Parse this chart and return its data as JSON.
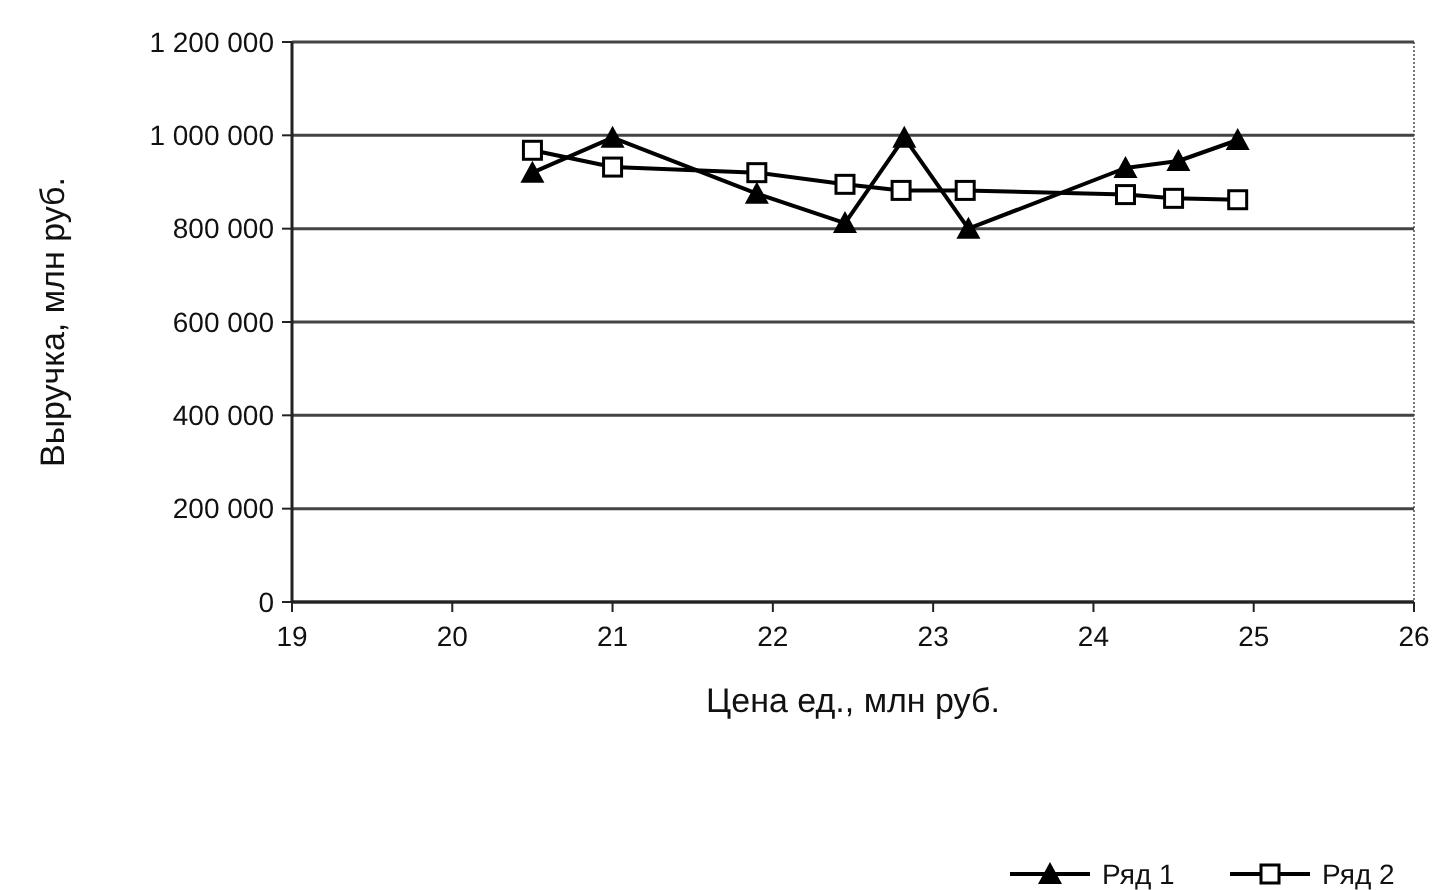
{
  "chart_data": {
    "type": "line",
    "xlabel": "Цена ед., млн руб.",
    "ylabel": "Выручка, млн руб.",
    "xlim": [
      19,
      26
    ],
    "xticks": [
      19,
      20,
      21,
      22,
      23,
      24,
      25,
      26
    ],
    "ylim": [
      0,
      1200000
    ],
    "yticks": [
      {
        "value": 0,
        "label": "0"
      },
      {
        "value": 200000,
        "label": "200 000"
      },
      {
        "value": 400000,
        "label": "400 000"
      },
      {
        "value": 600000,
        "label": "600 000"
      },
      {
        "value": 800000,
        "label": "800 000"
      },
      {
        "value": 1000000,
        "label": "1 000 000"
      },
      {
        "value": 1200000,
        "label": "1 200 000"
      }
    ],
    "grid": "y",
    "legend": "bottom",
    "series": [
      {
        "name": "Ряд 1",
        "color": "#000000",
        "marker": "triangle",
        "x": [
          20.5,
          21.0,
          21.9,
          22.45,
          22.82,
          23.22,
          24.2,
          24.53,
          24.9
        ],
        "values": [
          920000,
          995000,
          875000,
          812000,
          995000,
          800000,
          930000,
          945000,
          990000
        ]
      },
      {
        "name": "Ряд 2",
        "color": "#000000",
        "marker": "square",
        "x": [
          20.5,
          21.0,
          21.9,
          22.45,
          22.8,
          23.2,
          24.2,
          24.5,
          24.9
        ],
        "values": [
          968000,
          932000,
          920000,
          895000,
          882000,
          882000,
          873000,
          865000,
          862000
        ]
      }
    ]
  }
}
